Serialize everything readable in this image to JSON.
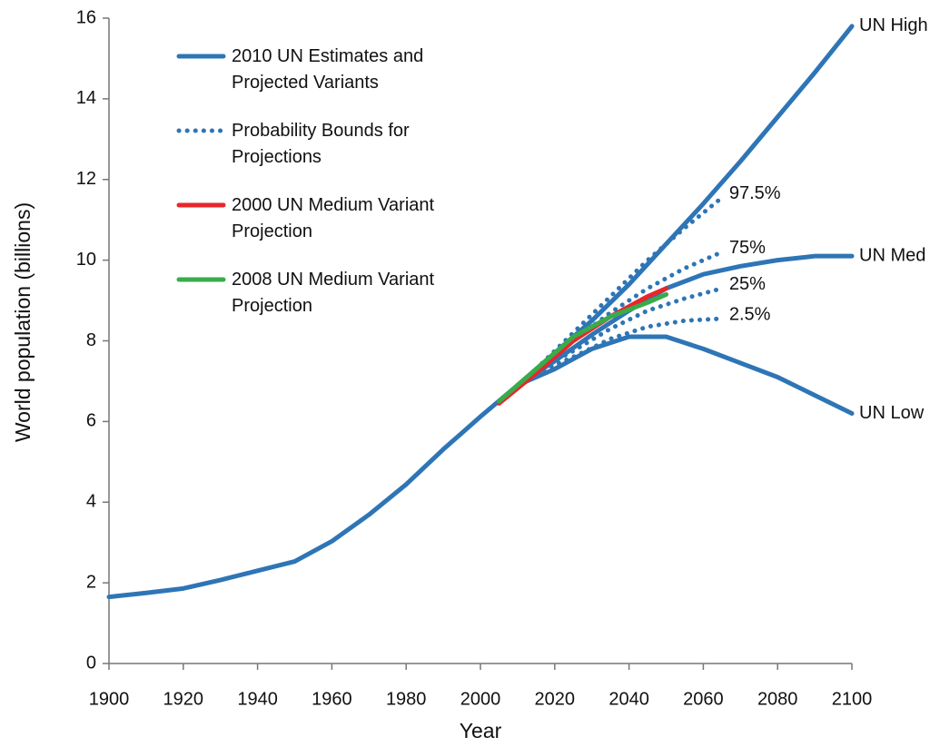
{
  "chart_data": {
    "type": "line",
    "ylabel": "World population (billions)",
    "xlabel": "Year",
    "xlim": [
      1900,
      2100
    ],
    "xticks": [
      1900,
      1920,
      1940,
      1960,
      1980,
      2000,
      2020,
      2040,
      2060,
      2080,
      2100
    ],
    "ylim": [
      0,
      16
    ],
    "yticks": [
      0,
      2,
      4,
      6,
      8,
      10,
      12,
      14,
      16
    ],
    "grid": false,
    "series": [
      {
        "name": "2010 UN Estimates and Projected Variants",
        "color": "#2e75b6",
        "style": "solid",
        "x": [
          1900,
          1910,
          1920,
          1930,
          1940,
          1950,
          1960,
          1970,
          1980,
          1990,
          2000,
          2010
        ],
        "values": [
          1.65,
          1.75,
          1.86,
          2.07,
          2.3,
          2.53,
          3.03,
          3.69,
          4.44,
          5.31,
          6.12,
          6.9
        ]
      },
      {
        "label": "UN High",
        "color": "#2e75b6",
        "style": "solid",
        "x": [
          2010,
          2020,
          2030,
          2040,
          2050,
          2060,
          2070,
          2080,
          2090,
          2100
        ],
        "values": [
          6.9,
          7.7,
          8.5,
          9.4,
          10.4,
          11.4,
          12.45,
          13.55,
          14.65,
          15.8
        ]
      },
      {
        "label": "UN Med",
        "color": "#2e75b6",
        "style": "solid",
        "x": [
          2010,
          2020,
          2030,
          2040,
          2050,
          2060,
          2070,
          2080,
          2090,
          2100
        ],
        "values": [
          6.9,
          7.5,
          8.15,
          8.75,
          9.3,
          9.65,
          9.85,
          10.0,
          10.1,
          10.1
        ]
      },
      {
        "label": "UN Low",
        "color": "#2e75b6",
        "style": "solid",
        "x": [
          2010,
          2020,
          2030,
          2040,
          2050,
          2060,
          2070,
          2080,
          2090,
          2100
        ],
        "values": [
          6.9,
          7.3,
          7.8,
          8.1,
          8.1,
          7.8,
          7.45,
          7.1,
          6.65,
          6.2
        ]
      },
      {
        "name": "Probability Bounds for Projections",
        "label": "97.5%",
        "color": "#2e75b6",
        "style": "dotted",
        "x": [
          2015,
          2025,
          2035,
          2045,
          2055,
          2065
        ],
        "values": [
          7.3,
          8.2,
          9.1,
          10.0,
          10.8,
          11.55
        ]
      },
      {
        "label": "75%",
        "color": "#2e75b6",
        "style": "dotted",
        "x": [
          2015,
          2025,
          2035,
          2045,
          2055,
          2065
        ],
        "values": [
          7.3,
          8.0,
          8.7,
          9.3,
          9.8,
          10.2
        ]
      },
      {
        "label": "25%",
        "color": "#2e75b6",
        "style": "dotted",
        "x": [
          2015,
          2025,
          2035,
          2045,
          2055,
          2065
        ],
        "values": [
          7.25,
          7.75,
          8.3,
          8.75,
          9.05,
          9.3
        ]
      },
      {
        "label": "2.5%",
        "color": "#2e75b6",
        "style": "dotted",
        "x": [
          2015,
          2025,
          2035,
          2045,
          2055,
          2065
        ],
        "values": [
          7.2,
          7.6,
          8.05,
          8.35,
          8.5,
          8.55
        ]
      },
      {
        "name": "2000 UN Medium Variant Projection",
        "color": "#e8262a",
        "style": "solid",
        "x": [
          2005,
          2015,
          2025,
          2035,
          2045,
          2050
        ],
        "values": [
          6.45,
          7.2,
          8.0,
          8.6,
          9.1,
          9.3
        ]
      },
      {
        "name": "2008 UN Medium Variant Projection",
        "color": "#3aab4a",
        "style": "solid",
        "x": [
          2005,
          2015,
          2025,
          2035,
          2045,
          2050
        ],
        "values": [
          6.5,
          7.3,
          8.1,
          8.6,
          8.95,
          9.15
        ]
      }
    ]
  }
}
